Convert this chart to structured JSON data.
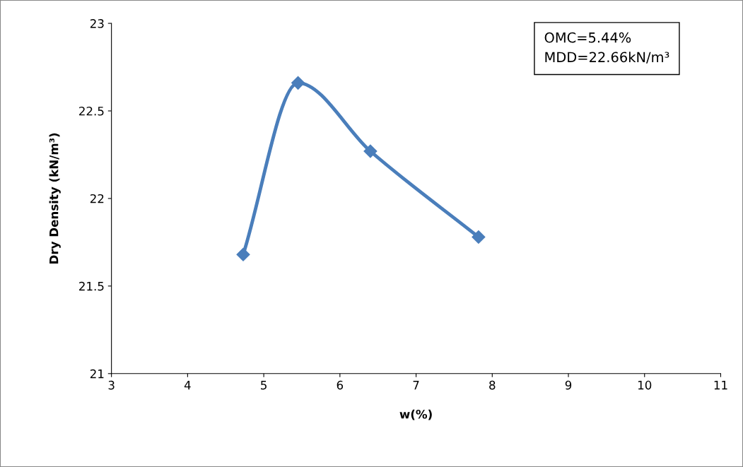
{
  "chart_data": {
    "type": "line",
    "xlabel": "w(%)",
    "ylabel": "Dry Density (kN/m³)",
    "x": [
      4.73,
      5.45,
      6.4,
      7.82
    ],
    "series": [
      {
        "color": "#4a7ebb",
        "values": [
          21.68,
          22.66,
          22.27,
          21.78
        ]
      }
    ],
    "xlim": [
      3,
      11
    ],
    "xticks": [
      3,
      4,
      5,
      6,
      7,
      8,
      9,
      10,
      11
    ],
    "ylim": [
      21,
      23
    ],
    "yticks": [
      21,
      21.5,
      22,
      22.5,
      23
    ],
    "annotations": [
      "OMC=5.44%\nMDD=22.66kN/m³"
    ],
    "grid": false,
    "legend": false,
    "marker": "diamond",
    "line_style": "solid"
  }
}
